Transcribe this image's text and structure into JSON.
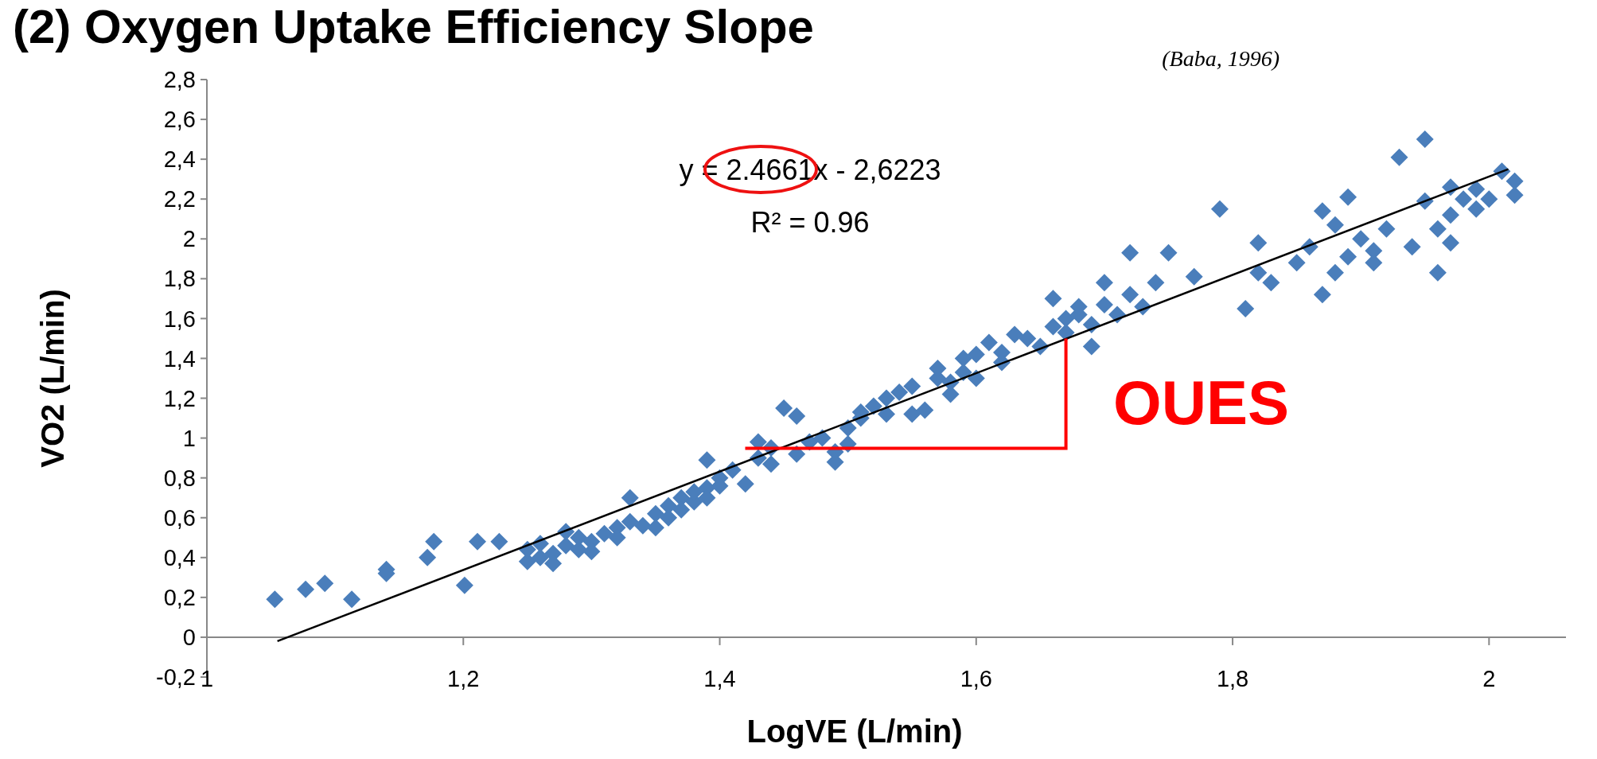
{
  "chart_data": {
    "type": "scatter",
    "title": "(2) Oxygen Uptake Efficiency Slope",
    "xlabel": "LogVE (L/min)",
    "ylabel": "VO2 (L/min)",
    "annotations": [
      "(Baba, 1996)",
      "y = 2.4661x - 2,6223",
      "R² = 0.96",
      {
        "text": "OUES",
        "x": 1.67,
        "y": 1.5
      }
    ],
    "xlim": [
      1,
      2.06
    ],
    "ylim": [
      -0.2,
      2.8
    ],
    "xticks": [
      {
        "value": 1,
        "label": "1"
      },
      {
        "value": 1.2,
        "label": "1,2"
      },
      {
        "value": 1.4,
        "label": "1,4"
      },
      {
        "value": 1.6,
        "label": "1,6"
      },
      {
        "value": 1.8,
        "label": "1,8"
      },
      {
        "value": 2,
        "label": "2"
      }
    ],
    "yticks": [
      {
        "value": -0.2,
        "label": "-0,2"
      },
      0,
      {
        "value": 0.2,
        "label": "0,2"
      },
      {
        "value": 0.4,
        "label": "0,4"
      },
      {
        "value": 0.6,
        "label": "0,6"
      },
      {
        "value": 0.8,
        "label": "0,8"
      },
      1,
      {
        "value": 1.2,
        "label": "1,2"
      },
      {
        "value": 1.4,
        "label": "1,4"
      },
      {
        "value": 1.6,
        "label": "1,6"
      },
      {
        "value": 1.8,
        "label": "1,8"
      },
      2,
      {
        "value": 2.2,
        "label": "2,2"
      },
      {
        "value": 2.4,
        "label": "2,4"
      },
      {
        "value": 2.6,
        "label": "2,6"
      },
      {
        "value": 2.8,
        "label": "2,8"
      }
    ],
    "grid": false,
    "series": [
      {
        "type": "scatter",
        "marker": "diamond",
        "color": "#4a7ebb",
        "x": [
          1.053,
          1.077,
          1.092,
          1.113,
          1.14,
          1.14,
          1.172,
          1.177,
          1.201,
          1.211,
          1.228,
          1.25,
          1.25,
          1.26,
          1.26,
          1.27,
          1.27,
          1.28,
          1.28,
          1.29,
          1.29,
          1.3,
          1.3,
          1.31,
          1.32,
          1.32,
          1.33,
          1.33,
          1.34,
          1.35,
          1.35,
          1.36,
          1.36,
          1.37,
          1.37,
          1.38,
          1.38,
          1.39,
          1.39,
          1.4,
          1.4,
          1.39,
          1.41,
          1.42,
          1.43,
          1.43,
          1.44,
          1.44,
          1.45,
          1.46,
          1.46,
          1.47,
          1.48,
          1.49,
          1.49,
          1.5,
          1.5,
          1.51,
          1.51,
          1.52,
          1.53,
          1.53,
          1.54,
          1.55,
          1.55,
          1.56,
          1.57,
          1.57,
          1.58,
          1.58,
          1.59,
          1.59,
          1.6,
          1.6,
          1.61,
          1.62,
          1.62,
          1.63,
          1.64,
          1.65,
          1.66,
          1.66,
          1.67,
          1.67,
          1.68,
          1.68,
          1.69,
          1.69,
          1.7,
          1.7,
          1.71,
          1.72,
          1.72,
          1.73,
          1.74,
          1.75,
          1.77,
          1.79,
          1.81,
          1.82,
          1.82,
          1.83,
          1.85,
          1.86,
          1.87,
          1.87,
          1.88,
          1.88,
          1.89,
          1.89,
          1.9,
          1.91,
          1.91,
          1.92,
          1.93,
          1.94,
          1.95,
          1.95,
          1.96,
          1.96,
          1.97,
          1.97,
          1.98,
          1.99,
          2,
          2.01,
          2.02,
          2.02,
          1.97,
          1.99
        ],
        "values": [
          0.19,
          0.24,
          0.27,
          0.19,
          0.34,
          0.32,
          0.4,
          0.48,
          0.26,
          0.48,
          0.48,
          0.38,
          0.44,
          0.4,
          0.47,
          0.42,
          0.37,
          0.46,
          0.53,
          0.44,
          0.5,
          0.48,
          0.43,
          0.52,
          0.55,
          0.5,
          0.7,
          0.58,
          0.56,
          0.62,
          0.55,
          0.66,
          0.6,
          0.7,
          0.64,
          0.68,
          0.73,
          0.75,
          0.7,
          0.8,
          0.76,
          0.89,
          0.84,
          0.77,
          0.9,
          0.98,
          0.87,
          0.95,
          1.15,
          1.11,
          0.92,
          0.98,
          1,
          0.93,
          0.88,
          1.05,
          0.97,
          1.1,
          1.13,
          1.16,
          1.2,
          1.12,
          1.23,
          1.26,
          1.12,
          1.14,
          1.3,
          1.35,
          1.28,
          1.22,
          1.4,
          1.33,
          1.42,
          1.3,
          1.48,
          1.43,
          1.38,
          1.52,
          1.5,
          1.46,
          1.7,
          1.56,
          1.6,
          1.53,
          1.62,
          1.66,
          1.46,
          1.57,
          1.67,
          1.78,
          1.62,
          1.72,
          1.93,
          1.66,
          1.78,
          1.93,
          1.81,
          2.15,
          1.65,
          1.83,
          1.98,
          1.78,
          1.88,
          1.96,
          1.72,
          2.14,
          1.83,
          2.07,
          1.91,
          2.21,
          2,
          1.94,
          1.88,
          2.05,
          2.41,
          1.96,
          2.5,
          2.19,
          2.05,
          1.83,
          2.26,
          1.98,
          2.2,
          2.25,
          2.2,
          2.34,
          2.22,
          2.29,
          2.12,
          2.15
        ]
      },
      {
        "type": "line",
        "color": "#000000",
        "x": [
          1.055,
          2.015
        ],
        "values": [
          -0.02,
          2.35
        ]
      }
    ]
  }
}
